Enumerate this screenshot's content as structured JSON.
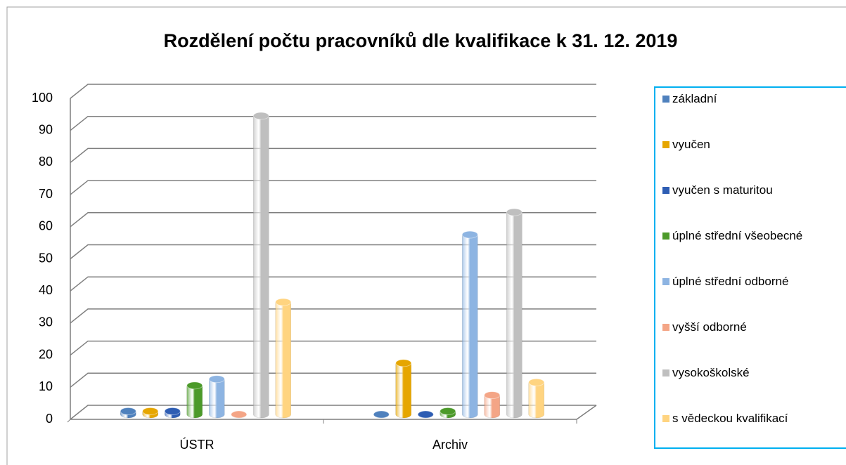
{
  "chart_data": {
    "type": "bar3d",
    "title": "Rozdělení počtu pracovníků dle kvalifikace k 31. 12. 2019",
    "categories": [
      "ÚSTR",
      "Archiv"
    ],
    "series": [
      {
        "name": "základní",
        "color": "#4f81bd",
        "values": [
          1,
          0
        ]
      },
      {
        "name": "vyučen",
        "color": "#e6a600",
        "values": [
          1,
          16
        ]
      },
      {
        "name": "vyučen s maturitou",
        "color": "#2e5db3",
        "values": [
          1,
          0
        ]
      },
      {
        "name": "úplné střední všeobecné",
        "color": "#4c9a2a",
        "values": [
          9,
          1
        ]
      },
      {
        "name": "úplné střední odborné",
        "color": "#8db4e2",
        "values": [
          11,
          56
        ]
      },
      {
        "name": "vyšší odborné",
        "color": "#f4a586",
        "values": [
          0,
          6
        ]
      },
      {
        "name": "vysokoškolské",
        "color": "#bfbfbf",
        "values": [
          93,
          63
        ]
      },
      {
        "name": "s vědeckou kvalifikací",
        "color": "#ffd480",
        "values": [
          35,
          10
        ]
      }
    ],
    "ylim": [
      0,
      100
    ],
    "yticks": [
      0,
      10,
      20,
      30,
      40,
      50,
      60,
      70,
      80,
      90,
      100
    ],
    "grid": true
  }
}
